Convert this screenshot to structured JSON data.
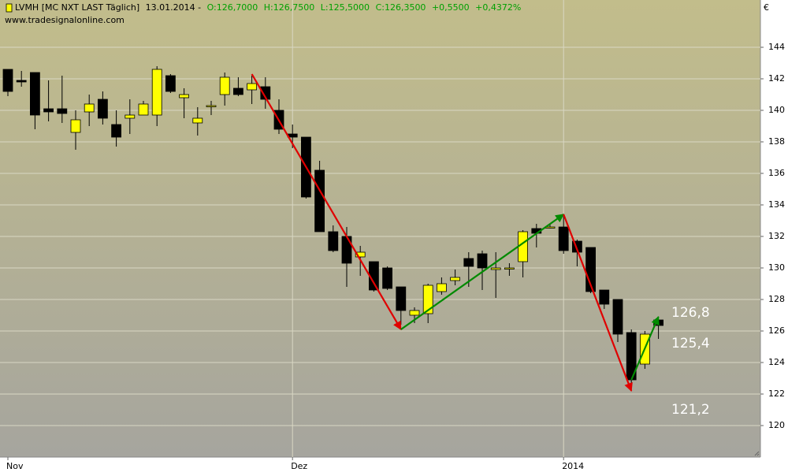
{
  "chart_data": {
    "type": "candlestick",
    "title": "LVMH [MC NXT LAST Täglich]",
    "date": "13.01.2014 -",
    "quote_labels": [
      "O:126,7000",
      "H:126,7500",
      "L:125,5000",
      "C:126,3500",
      "+0,5500",
      "+0,4372%"
    ],
    "source": "www.tradesignalonline.com",
    "y_unit": "€",
    "annotations": [
      "126,8",
      "125,4",
      "121,2"
    ],
    "categories": [
      "Nov",
      null,
      null,
      null,
      null,
      null,
      null,
      null,
      null,
      null,
      null,
      null,
      null,
      null,
      null,
      null,
      null,
      null,
      null,
      null,
      null,
      "Dez",
      null,
      null,
      null,
      null,
      null,
      null,
      null,
      null,
      null,
      null,
      null,
      null,
      null,
      null,
      null,
      null,
      null,
      null,
      null,
      "2014",
      null,
      null,
      null,
      null,
      null,
      null,
      null
    ],
    "open": [
      142.6,
      141.9,
      142.4,
      140.1,
      140.1,
      138.6,
      139.9,
      140.7,
      139.1,
      139.5,
      139.7,
      139.7,
      142.2,
      140.8,
      139.2,
      140.3,
      141.0,
      141.4,
      141.3,
      141.5,
      140.0,
      138.5,
      138.3,
      136.2,
      132.3,
      132.0,
      130.7,
      130.4,
      130.0,
      128.8,
      127.0,
      127.1,
      128.5,
      129.2,
      130.6,
      130.9,
      129.9,
      130.0,
      130.4,
      132.5,
      132.6,
      132.6,
      131.7,
      131.3,
      128.6,
      128.0,
      125.9,
      123.9,
      126.7
    ],
    "high": [
      142.6,
      142.5,
      142.4,
      141.9,
      142.2,
      140.0,
      141.0,
      141.2,
      140.0,
      140.7,
      140.6,
      142.8,
      142.3,
      141.4,
      140.2,
      140.6,
      142.4,
      142.1,
      142.2,
      142.1,
      140.7,
      139.1,
      138.3,
      136.8,
      132.7,
      132.6,
      131.4,
      130.4,
      130.1,
      128.8,
      127.5,
      129.0,
      129.4,
      129.9,
      131.0,
      131.1,
      131.0,
      130.3,
      132.4,
      132.8,
      132.8,
      133.3,
      131.8,
      131.3,
      128.6,
      128.0,
      126.1,
      126.0,
      126.75
    ],
    "low": [
      140.9,
      141.5,
      138.8,
      139.3,
      139.2,
      137.5,
      139.0,
      139.1,
      137.7,
      138.5,
      139.7,
      139.0,
      141.1,
      139.5,
      138.4,
      139.7,
      140.3,
      140.9,
      140.4,
      140.1,
      138.5,
      137.6,
      134.4,
      132.3,
      131.0,
      128.8,
      129.5,
      128.5,
      128.6,
      126.4,
      126.5,
      126.5,
      128.3,
      128.9,
      128.8,
      128.6,
      128.1,
      129.5,
      129.4,
      131.3,
      132.5,
      130.9,
      130.1,
      128.4,
      127.4,
      125.3,
      122.7,
      123.6,
      125.5
    ],
    "close": [
      141.2,
      141.8,
      139.7,
      139.9,
      139.8,
      139.4,
      140.4,
      139.5,
      138.3,
      139.7,
      140.4,
      142.6,
      141.2,
      141.0,
      139.5,
      140.3,
      142.1,
      141.0,
      141.7,
      140.7,
      138.8,
      138.3,
      134.5,
      132.3,
      131.1,
      130.3,
      131.0,
      128.6,
      128.7,
      127.3,
      127.3,
      128.9,
      129.0,
      129.4,
      130.1,
      130.0,
      130.0,
      130.0,
      132.3,
      132.2,
      132.6,
      131.1,
      131.0,
      128.5,
      127.7,
      125.8,
      122.9,
      125.8,
      126.35
    ],
    "up_color": "#ffff00",
    "down_color": "#000000",
    "trend_lines": [
      {
        "from": [
          18,
          142.3
        ],
        "to": [
          29,
          126.1
        ],
        "color": "#e00000"
      },
      {
        "from": [
          29,
          126.1
        ],
        "to": [
          41,
          133.4
        ],
        "color": "#008a00"
      },
      {
        "from": [
          41,
          133.4
        ],
        "to": [
          46,
          122.2
        ],
        "color": "#e00000"
      },
      {
        "from": [
          46,
          122.9
        ],
        "to": [
          48,
          126.9
        ],
        "color": "#008a00"
      }
    ],
    "ylim": [
      118,
      147
    ],
    "yticks": [
      120,
      122,
      124,
      126,
      128,
      130,
      132,
      134,
      136,
      138,
      140,
      142,
      144
    ],
    "grid": true
  }
}
